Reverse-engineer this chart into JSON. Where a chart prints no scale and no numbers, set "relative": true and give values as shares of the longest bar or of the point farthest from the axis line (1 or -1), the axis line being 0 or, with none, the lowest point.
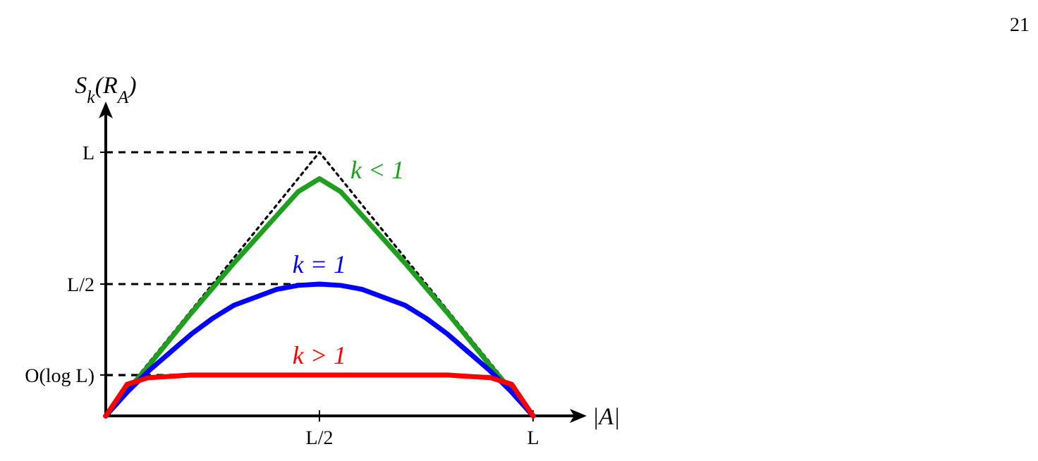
{
  "chart_data": {
    "type": "line",
    "relative": true,
    "xlabel": "|A|",
    "ylabel": "S$_{k}$(R$_{A}$)",
    "annotations": [
      "21"
    ],
    "legend": false,
    "marker": "none",
    "categories": [
      null,
      null,
      null,
      null,
      null,
      null,
      null,
      null,
      null,
      null,
      "L/2",
      null,
      null,
      null,
      null,
      null,
      null,
      null,
      null,
      null,
      "L"
    ],
    "ref_lines": [
      {
        "axis": "y",
        "value": 1,
        "label": "L",
        "color": "#000000",
        "line_style": "dashed"
      },
      {
        "axis": "y",
        "value": 0.5,
        "label": "L/2",
        "color": "#000000",
        "line_style": "dashed"
      },
      {
        "axis": "y",
        "value": 0.155,
        "label": "O(log L)",
        "color": "#000000",
        "line_style": "dashed"
      }
    ],
    "series": [
      {
        "color": "#000000",
        "line_style": "dotted",
        "values": [
          0,
          0.1,
          0.2,
          0.3,
          0.4,
          0.5,
          0.6,
          0.7,
          0.8,
          0.9,
          1,
          0.9,
          0.8,
          0.7,
          0.6,
          0.5,
          0.4,
          0.3,
          0.2,
          0.1,
          0
        ]
      },
      {
        "name": "k < 1",
        "color": "#1ea01e",
        "line_style": "solid",
        "values": [
          0,
          0.095,
          0.19,
          0.29,
          0.39,
          0.485,
          0.58,
          0.67,
          0.76,
          0.85,
          0.9,
          0.85,
          0.76,
          0.67,
          0.58,
          0.485,
          0.39,
          0.29,
          0.19,
          0.095,
          0
        ]
      },
      {
        "name": "k = 1",
        "color": "#0000ff",
        "line_style": "solid",
        "values": [
          0,
          0.09,
          0.17,
          0.24,
          0.31,
          0.37,
          0.42,
          0.45,
          0.48,
          0.495,
          0.5,
          0.495,
          0.48,
          0.45,
          0.42,
          0.37,
          0.31,
          0.24,
          0.17,
          0.09,
          0
        ]
      },
      {
        "name": "k > 1",
        "color": "#ff0000",
        "line_style": "solid",
        "values": [
          0,
          0.12,
          0.145,
          0.15,
          0.155,
          0.155,
          0.155,
          0.155,
          0.155,
          0.155,
          0.155,
          0.155,
          0.155,
          0.155,
          0.155,
          0.155,
          0.155,
          0.15,
          0.145,
          0.12,
          0
        ]
      }
    ]
  }
}
